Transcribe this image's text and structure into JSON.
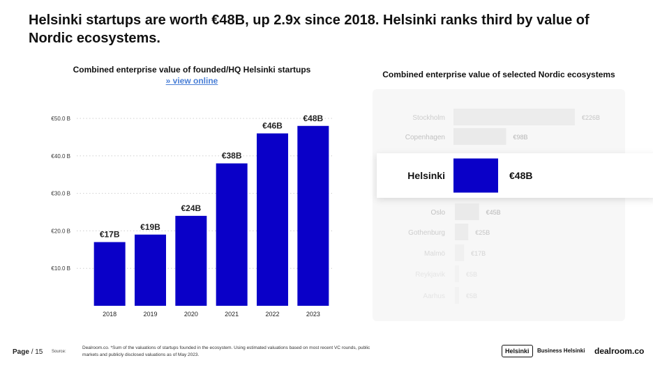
{
  "headline": "Helsinki startups are worth €48B, up 2.9x since 2018. Helsinki ranks third by value of Nordic ecosystems.",
  "chart_data": [
    {
      "type": "bar",
      "title": "Combined enterprise value of founded/HQ Helsinki startups",
      "link": "» view online",
      "categories": [
        "2018",
        "2019",
        "2020",
        "2021",
        "2022",
        "2023"
      ],
      "values": [
        17,
        19,
        24,
        38,
        46,
        48
      ],
      "data_labels": [
        "€17B",
        "€19B",
        "€24B",
        "€38B",
        "€46B",
        "€48B"
      ],
      "y_ticks": [
        10,
        20,
        30,
        40,
        50
      ],
      "y_tick_labels": [
        "€10.0 B",
        "€20.0 B",
        "€30.0 B",
        "€40.0 B",
        "€50.0 B"
      ],
      "ylim": [
        0,
        50
      ],
      "grid": true,
      "bar_color": "#0a00c8"
    },
    {
      "type": "bar",
      "orientation": "horizontal",
      "title": "Combined enterprise value of selected Nordic ecosystems",
      "categories": [
        "Stockholm",
        "Copenhagen",
        "Helsinki",
        "Oslo",
        "Gothenburg",
        "Malmö",
        "Reykjavik",
        "Aarhus"
      ],
      "values": [
        226,
        98,
        48,
        45,
        25,
        17,
        5,
        5
      ],
      "data_labels": [
        "€226B",
        "€98B",
        "€48B",
        "€45B",
        "€25B",
        "€17B",
        "€5B",
        "€5B"
      ],
      "highlight": "Helsinki",
      "highlight_color": "#0a00c8",
      "other_color": "#e6e6e6"
    }
  ],
  "footer": {
    "page_label": "Page",
    "page_number": "/ 15",
    "source_label": "Source:",
    "source_text": "Dealroom.co. *Sum of the valuations of startups founded in the ecosystem. Using estimated valuations based on most recent VC rounds, public markets and publicly disclosed valuations as of May 2023.",
    "logo_helsinki": "Helsinki",
    "logo_business_helsinki": "Business Helsinki",
    "logo_dealroom": "dealroom.co"
  }
}
